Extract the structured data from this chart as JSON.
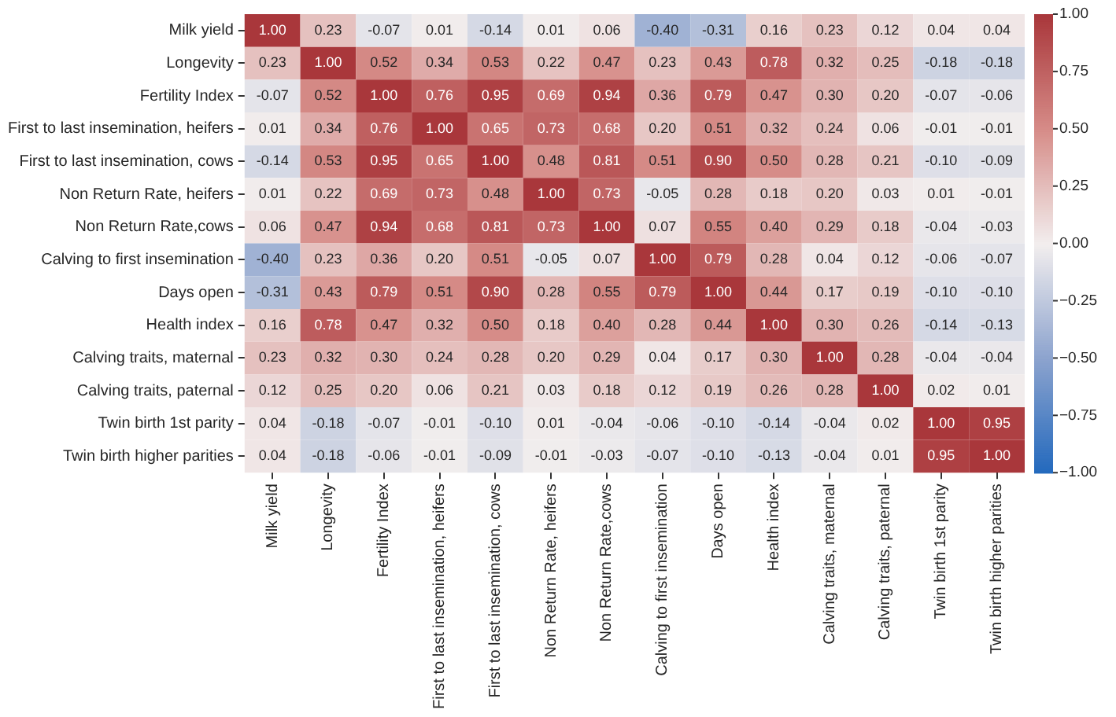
{
  "chart_data": {
    "type": "heatmap",
    "categories": [
      "Milk yield",
      "Longevity",
      "Fertility Index",
      "First to last insemination, heifers",
      "First to last insemination, cows",
      "Non Return Rate, heifers",
      "Non Return Rate,cows",
      "Calving to first insemination",
      "Days open",
      "Health index",
      "Calving traits, maternal",
      "Calving traits, paternal",
      "Twin birth 1st parity",
      "Twin birth higher parities"
    ],
    "y_categories": [
      "Milk yield",
      "Longevity",
      "Fertility Index",
      "First to last insemination, heifers",
      "First to last insemination, cows",
      "Non Return Rate, heifers",
      "Non Return Rate,cows",
      "Calving to first insemination",
      "Days open",
      "Health index",
      "Calving traits, maternal",
      "Calving traits, paternal",
      "Twin birth 1st parity",
      "Twin birth higher parities"
    ],
    "cells": [
      [
        1.0,
        0.23,
        -0.07,
        0.01,
        -0.14,
        0.01,
        0.06,
        -0.4,
        -0.31,
        0.16,
        0.23,
        0.12,
        0.04,
        0.04
      ],
      [
        0.23,
        1.0,
        0.52,
        0.34,
        0.53,
        0.22,
        0.47,
        0.23,
        0.43,
        0.78,
        0.32,
        0.25,
        -0.18,
        -0.18
      ],
      [
        -0.07,
        0.52,
        1.0,
        0.76,
        0.95,
        0.69,
        0.94,
        0.36,
        0.79,
        0.47,
        0.3,
        0.2,
        -0.07,
        -0.06
      ],
      [
        0.01,
        0.34,
        0.76,
        1.0,
        0.65,
        0.73,
        0.68,
        0.2,
        0.51,
        0.32,
        0.24,
        0.06,
        -0.01,
        -0.01
      ],
      [
        -0.14,
        0.53,
        0.95,
        0.65,
        1.0,
        0.48,
        0.81,
        0.51,
        0.9,
        0.5,
        0.28,
        0.21,
        -0.1,
        -0.09
      ],
      [
        0.01,
        0.22,
        0.69,
        0.73,
        0.48,
        1.0,
        0.73,
        -0.05,
        0.28,
        0.18,
        0.2,
        0.03,
        0.01,
        -0.01
      ],
      [
        0.06,
        0.47,
        0.94,
        0.68,
        0.81,
        0.73,
        1.0,
        0.07,
        0.55,
        0.4,
        0.29,
        0.18,
        -0.04,
        -0.03
      ],
      [
        -0.4,
        0.23,
        0.36,
        0.2,
        0.51,
        -0.05,
        0.07,
        1.0,
        0.79,
        0.28,
        0.04,
        0.12,
        -0.06,
        -0.07
      ],
      [
        -0.31,
        0.43,
        0.79,
        0.51,
        0.9,
        0.28,
        0.55,
        0.79,
        1.0,
        0.44,
        0.17,
        0.19,
        -0.1,
        -0.1
      ],
      [
        0.16,
        0.78,
        0.47,
        0.32,
        0.5,
        0.18,
        0.4,
        0.28,
        0.44,
        1.0,
        0.3,
        0.26,
        -0.14,
        -0.13
      ],
      [
        0.23,
        0.32,
        0.3,
        0.24,
        0.28,
        0.2,
        0.29,
        0.04,
        0.17,
        0.3,
        1.0,
        0.28,
        -0.04,
        -0.04
      ],
      [
        0.12,
        0.25,
        0.2,
        0.06,
        0.21,
        0.03,
        0.18,
        0.12,
        0.19,
        0.26,
        0.28,
        1.0,
        0.02,
        0.01
      ],
      [
        0.04,
        -0.18,
        -0.07,
        -0.01,
        -0.1,
        0.01,
        -0.04,
        -0.06,
        -0.1,
        -0.14,
        -0.04,
        0.02,
        1.0,
        0.95
      ],
      [
        0.04,
        -0.18,
        -0.06,
        -0.01,
        -0.09,
        -0.01,
        -0.03,
        -0.07,
        -0.1,
        -0.13,
        -0.04,
        0.01,
        0.95,
        1.0
      ]
    ],
    "cell_labels": [
      [
        "1.00",
        "0.23",
        "-0.07",
        "0.01",
        "-0.14",
        "0.01",
        "0.06",
        "-0.40",
        "-0.31",
        "0.16",
        "0.23",
        "0.12",
        "0.04",
        "0.04"
      ],
      [
        "0.23",
        "1.00",
        "0.52",
        "0.34",
        "0.53",
        "0.22",
        "0.47",
        "0.23",
        "0.43",
        "0.78",
        "0.32",
        "0.25",
        "-0.18",
        "-0.18"
      ],
      [
        "-0.07",
        "0.52",
        "1.00",
        "0.76",
        "0.95",
        "0.69",
        "0.94",
        "0.36",
        "0.79",
        "0.47",
        "0.30",
        "0.20",
        "-0.07",
        "-0.06"
      ],
      [
        "0.01",
        "0.34",
        "0.76",
        "1.00",
        "0.65",
        "0.73",
        "0.68",
        "0.20",
        "0.51",
        "0.32",
        "0.24",
        "0.06",
        "-0.01",
        "-0.01"
      ],
      [
        "-0.14",
        "0.53",
        "0.95",
        "0.65",
        "1.00",
        "0.48",
        "0.81",
        "0.51",
        "0.90",
        "0.50",
        "0.28",
        "0.21",
        "-0.10",
        "-0.09"
      ],
      [
        "0.01",
        "0.22",
        "0.69",
        "0.73",
        "0.48",
        "1.00",
        "0.73",
        "-0.05",
        "0.28",
        "0.18",
        "0.20",
        "0.03",
        "0.01",
        "-0.01"
      ],
      [
        "0.06",
        "0.47",
        "0.94",
        "0.68",
        "0.81",
        "0.73",
        "1.00",
        "0.07",
        "0.55",
        "0.40",
        "0.29",
        "0.18",
        "-0.04",
        "-0.03"
      ],
      [
        "-0.40",
        "0.23",
        "0.36",
        "0.20",
        "0.51",
        "-0.05",
        "0.07",
        "1.00",
        "0.79",
        "0.28",
        "0.04",
        "0.12",
        "-0.06",
        "-0.07"
      ],
      [
        "-0.31",
        "0.43",
        "0.79",
        "0.51",
        "0.90",
        "0.28",
        "0.55",
        "0.79",
        "1.00",
        "0.44",
        "0.17",
        "0.19",
        "-0.10",
        "-0.10"
      ],
      [
        "0.16",
        "0.78",
        "0.47",
        "0.32",
        "0.50",
        "0.18",
        "0.40",
        "0.28",
        "0.44",
        "1.00",
        "0.30",
        "0.26",
        "-0.14",
        "-0.13"
      ],
      [
        "0.23",
        "0.32",
        "0.30",
        "0.24",
        "0.28",
        "0.20",
        "0.29",
        "0.04",
        "0.17",
        "0.30",
        "1.00",
        "0.28",
        "-0.04",
        "-0.04"
      ],
      [
        "0.12",
        "0.25",
        "0.20",
        "0.06",
        "0.21",
        "0.03",
        "0.18",
        "0.12",
        "0.19",
        "0.26",
        "0.28",
        "1.00",
        "0.02",
        "0.01"
      ],
      [
        "0.04",
        "-0.18",
        "-0.07",
        "-0.01",
        "-0.10",
        "0.01",
        "-0.04",
        "-0.06",
        "-0.10",
        "-0.14",
        "-0.04",
        "0.02",
        "1.00",
        "0.95"
      ],
      [
        "0.04",
        "-0.18",
        "-0.06",
        "-0.01",
        "-0.09",
        "-0.01",
        "-0.03",
        "-0.07",
        "-0.10",
        "-0.13",
        "-0.04",
        "0.01",
        "0.95",
        "1.00"
      ]
    ],
    "clim": [
      -1,
      1
    ],
    "cticks": [
      {
        "value": -1,
        "label": "−1.00"
      },
      {
        "value": -0.75,
        "label": "−0.75"
      },
      {
        "value": -0.5,
        "label": "−0.50"
      },
      {
        "value": -0.25,
        "label": "−0.25"
      },
      {
        "value": 0,
        "label": "0.00"
      },
      {
        "value": 0.25,
        "label": "0.25"
      },
      {
        "value": 0.5,
        "label": "0.50"
      },
      {
        "value": 0.75,
        "label": "0.75"
      },
      {
        "value": 1,
        "label": "1.00"
      }
    ],
    "data_labels": true
  }
}
